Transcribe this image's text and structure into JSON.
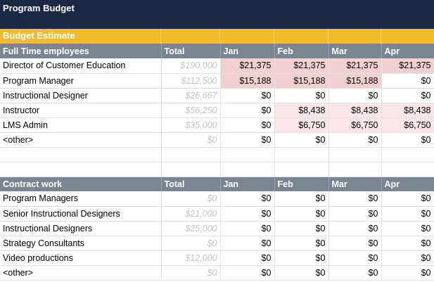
{
  "title": "Program Budget",
  "section_label": "Budget Estimate",
  "fte": {
    "header": {
      "label": "Full Time employees",
      "total": "Total",
      "months": [
        "Jan",
        "Feb",
        "Mar",
        "Apr"
      ]
    },
    "rows": [
      {
        "name": "Director of Customer Education",
        "total": "$190,000",
        "months": [
          "$21,375",
          "$21,375",
          "$21,375",
          "$21,375"
        ],
        "hl": [
          "hi1",
          "hi1",
          "hi1",
          "hi1"
        ]
      },
      {
        "name": "Program Manager",
        "total": "$112,500",
        "months": [
          "$15,188",
          "$15,188",
          "$15,188",
          "$0"
        ],
        "hl": [
          "hi1",
          "hi1",
          "hi1",
          ""
        ]
      },
      {
        "name": "Instructional Designer",
        "total": "$26,667",
        "months": [
          "$0",
          "$0",
          "$0",
          "$0"
        ],
        "hl": [
          "",
          "",
          "",
          ""
        ]
      },
      {
        "name": "Instructor",
        "total": "$56,250",
        "months": [
          "$0",
          "$8,438",
          "$8,438",
          "$8,438"
        ],
        "hl": [
          "",
          "hi2",
          "hi2",
          "hi2"
        ]
      },
      {
        "name": "LMS Admin",
        "total": "$35,000",
        "months": [
          "$0",
          "$6,750",
          "$6,750",
          "$6,750"
        ],
        "hl": [
          "",
          "hi2",
          "hi2",
          "hi2"
        ]
      },
      {
        "name": "<other>",
        "total": "$0",
        "months": [
          "$0",
          "$0",
          "$0",
          "$0"
        ],
        "hl": [
          "",
          "",
          "",
          ""
        ]
      }
    ]
  },
  "contract": {
    "header": {
      "label": "Contract work",
      "total": "Total",
      "months": [
        "Jan",
        "Feb",
        "Mar",
        "Apr"
      ]
    },
    "rows": [
      {
        "name": "Program Managers",
        "total": "$0",
        "months": [
          "$0",
          "$0",
          "$0",
          "$0"
        ]
      },
      {
        "name": "Senior Instructional Designers",
        "total": "$21,000",
        "months": [
          "$0",
          "$0",
          "$0",
          "$0"
        ]
      },
      {
        "name": "Instructional Designers",
        "total": "$25,000",
        "months": [
          "$0",
          "$0",
          "$0",
          "$0"
        ]
      },
      {
        "name": "Strategy Consultants",
        "total": "$0",
        "months": [
          "$0",
          "$0",
          "$0",
          "$0"
        ]
      },
      {
        "name": "Video productions",
        "total": "$12,000",
        "months": [
          "$0",
          "$0",
          "$0",
          "$0"
        ]
      },
      {
        "name": "<other>",
        "total": "$0",
        "months": [
          "$0",
          "$0",
          "$0",
          "$0"
        ]
      }
    ]
  }
}
